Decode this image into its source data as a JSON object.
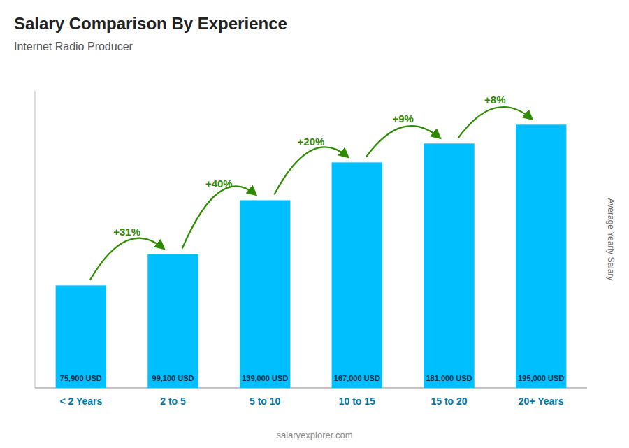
{
  "chart_data": {
    "type": "bar",
    "title": "Salary Comparison By Experience",
    "subtitle": "Internet Radio Producer",
    "ylabel": "Average Yearly Salary",
    "watermark": "salaryexplorer.com",
    "categories": [
      "< 2 Years",
      "2 to 5",
      "5 to 10",
      "10 to 15",
      "15 to 20",
      "20+ Years"
    ],
    "values": [
      75900,
      99100,
      139000,
      167000,
      181000,
      195000
    ],
    "value_labels": [
      "75,900 USD",
      "99,100 USD",
      "139,000 USD",
      "167,000 USD",
      "181,000 USD",
      "195,000 USD"
    ],
    "annotations": [
      null,
      "+31%",
      "+40%",
      "+20%",
      "+9%",
      "+8%"
    ],
    "color": "#00BFFF",
    "ylim": [
      0,
      220000
    ],
    "data_labels": true,
    "tick_labels": "x",
    "grid": false
  }
}
